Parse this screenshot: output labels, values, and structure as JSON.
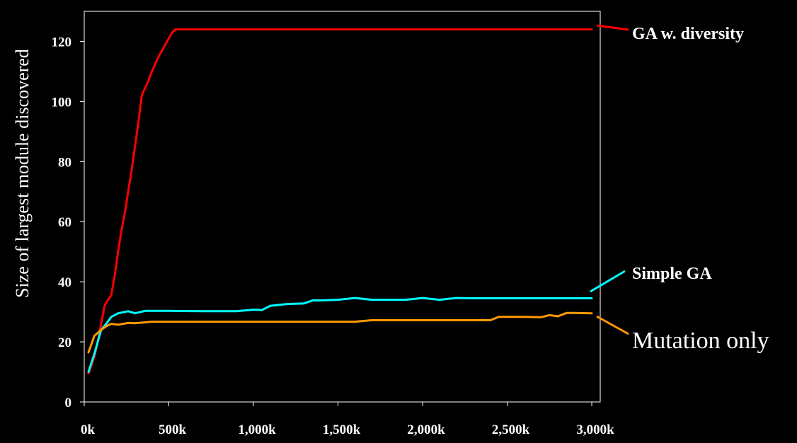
{
  "chart_data": {
    "type": "line",
    "ylabel": "Size of largest module discovered",
    "xlim": [
      0,
      3050
    ],
    "ylim": [
      0,
      130
    ],
    "xticks": [
      0,
      500,
      1000,
      1500,
      2000,
      2500,
      3000
    ],
    "xtick_labels": [
      "0k",
      "500k",
      "1,000k",
      "1,500k",
      "2,000k",
      "2,500k",
      "3,000k"
    ],
    "yticks": [
      0,
      20,
      40,
      60,
      80,
      100,
      120
    ],
    "ytick_labels": [
      "0",
      "20",
      "40",
      "60",
      "80",
      "100",
      "120"
    ],
    "grid": false,
    "legend_placement": "right (inline labels)",
    "series": [
      {
        "name": "GA w. diversity",
        "color": "#ff0000",
        "x": [
          25,
          60,
          80,
          100,
          120,
          140,
          160,
          180,
          200,
          220,
          240,
          260,
          280,
          300,
          320,
          340,
          360,
          380,
          400,
          420,
          440,
          460,
          480,
          500,
          520,
          540,
          560,
          580,
          620,
          700,
          800,
          1000,
          1200,
          1500,
          1800,
          2000,
          2200,
          2500,
          2800,
          3000
        ],
        "y": [
          9.5,
          15,
          20,
          26,
          32,
          34,
          35.5,
          42,
          50,
          57,
          63,
          70,
          77,
          85,
          93,
          102,
          104.5,
          107,
          110,
          112.5,
          115,
          117,
          119,
          121,
          123,
          124,
          124,
          124,
          124,
          124,
          124,
          124,
          124,
          124,
          124,
          124,
          124,
          124,
          124,
          124
        ]
      },
      {
        "name": "Simple GA",
        "color": "#00ffff",
        "x": [
          25,
          60,
          100,
          130,
          160,
          200,
          260,
          300,
          360,
          500,
          700,
          900,
          1000,
          1050,
          1100,
          1200,
          1300,
          1350,
          1400,
          1500,
          1600,
          1700,
          1800,
          1900,
          2000,
          2100,
          2200,
          2300,
          2500,
          2700,
          2900,
          3000
        ],
        "y": [
          10,
          16,
          24,
          26,
          28.3,
          29.5,
          30.2,
          29.5,
          30.3,
          30.3,
          30.2,
          30.2,
          30.7,
          30.6,
          32,
          32.6,
          32.8,
          33.8,
          33.8,
          34,
          34.6,
          34,
          34,
          34,
          34.6,
          34,
          34.6,
          34.5,
          34.5,
          34.5,
          34.5,
          34.5
        ]
      },
      {
        "name": "Mutation only",
        "color": "#ff9900",
        "x": [
          25,
          60,
          100,
          130,
          160,
          200,
          260,
          300,
          400,
          600,
          800,
          1000,
          1200,
          1400,
          1600,
          1700,
          1800,
          2000,
          2200,
          2400,
          2450,
          2600,
          2700,
          2750,
          2800,
          2850,
          2900,
          3000
        ],
        "y": [
          16.5,
          22,
          24,
          25.2,
          26,
          25.7,
          26.3,
          26.2,
          26.7,
          26.7,
          26.7,
          26.7,
          26.7,
          26.7,
          26.7,
          27.2,
          27.2,
          27.2,
          27.2,
          27.2,
          28.3,
          28.3,
          28.2,
          28.9,
          28.5,
          29.6,
          29.6,
          29.5
        ]
      }
    ]
  }
}
